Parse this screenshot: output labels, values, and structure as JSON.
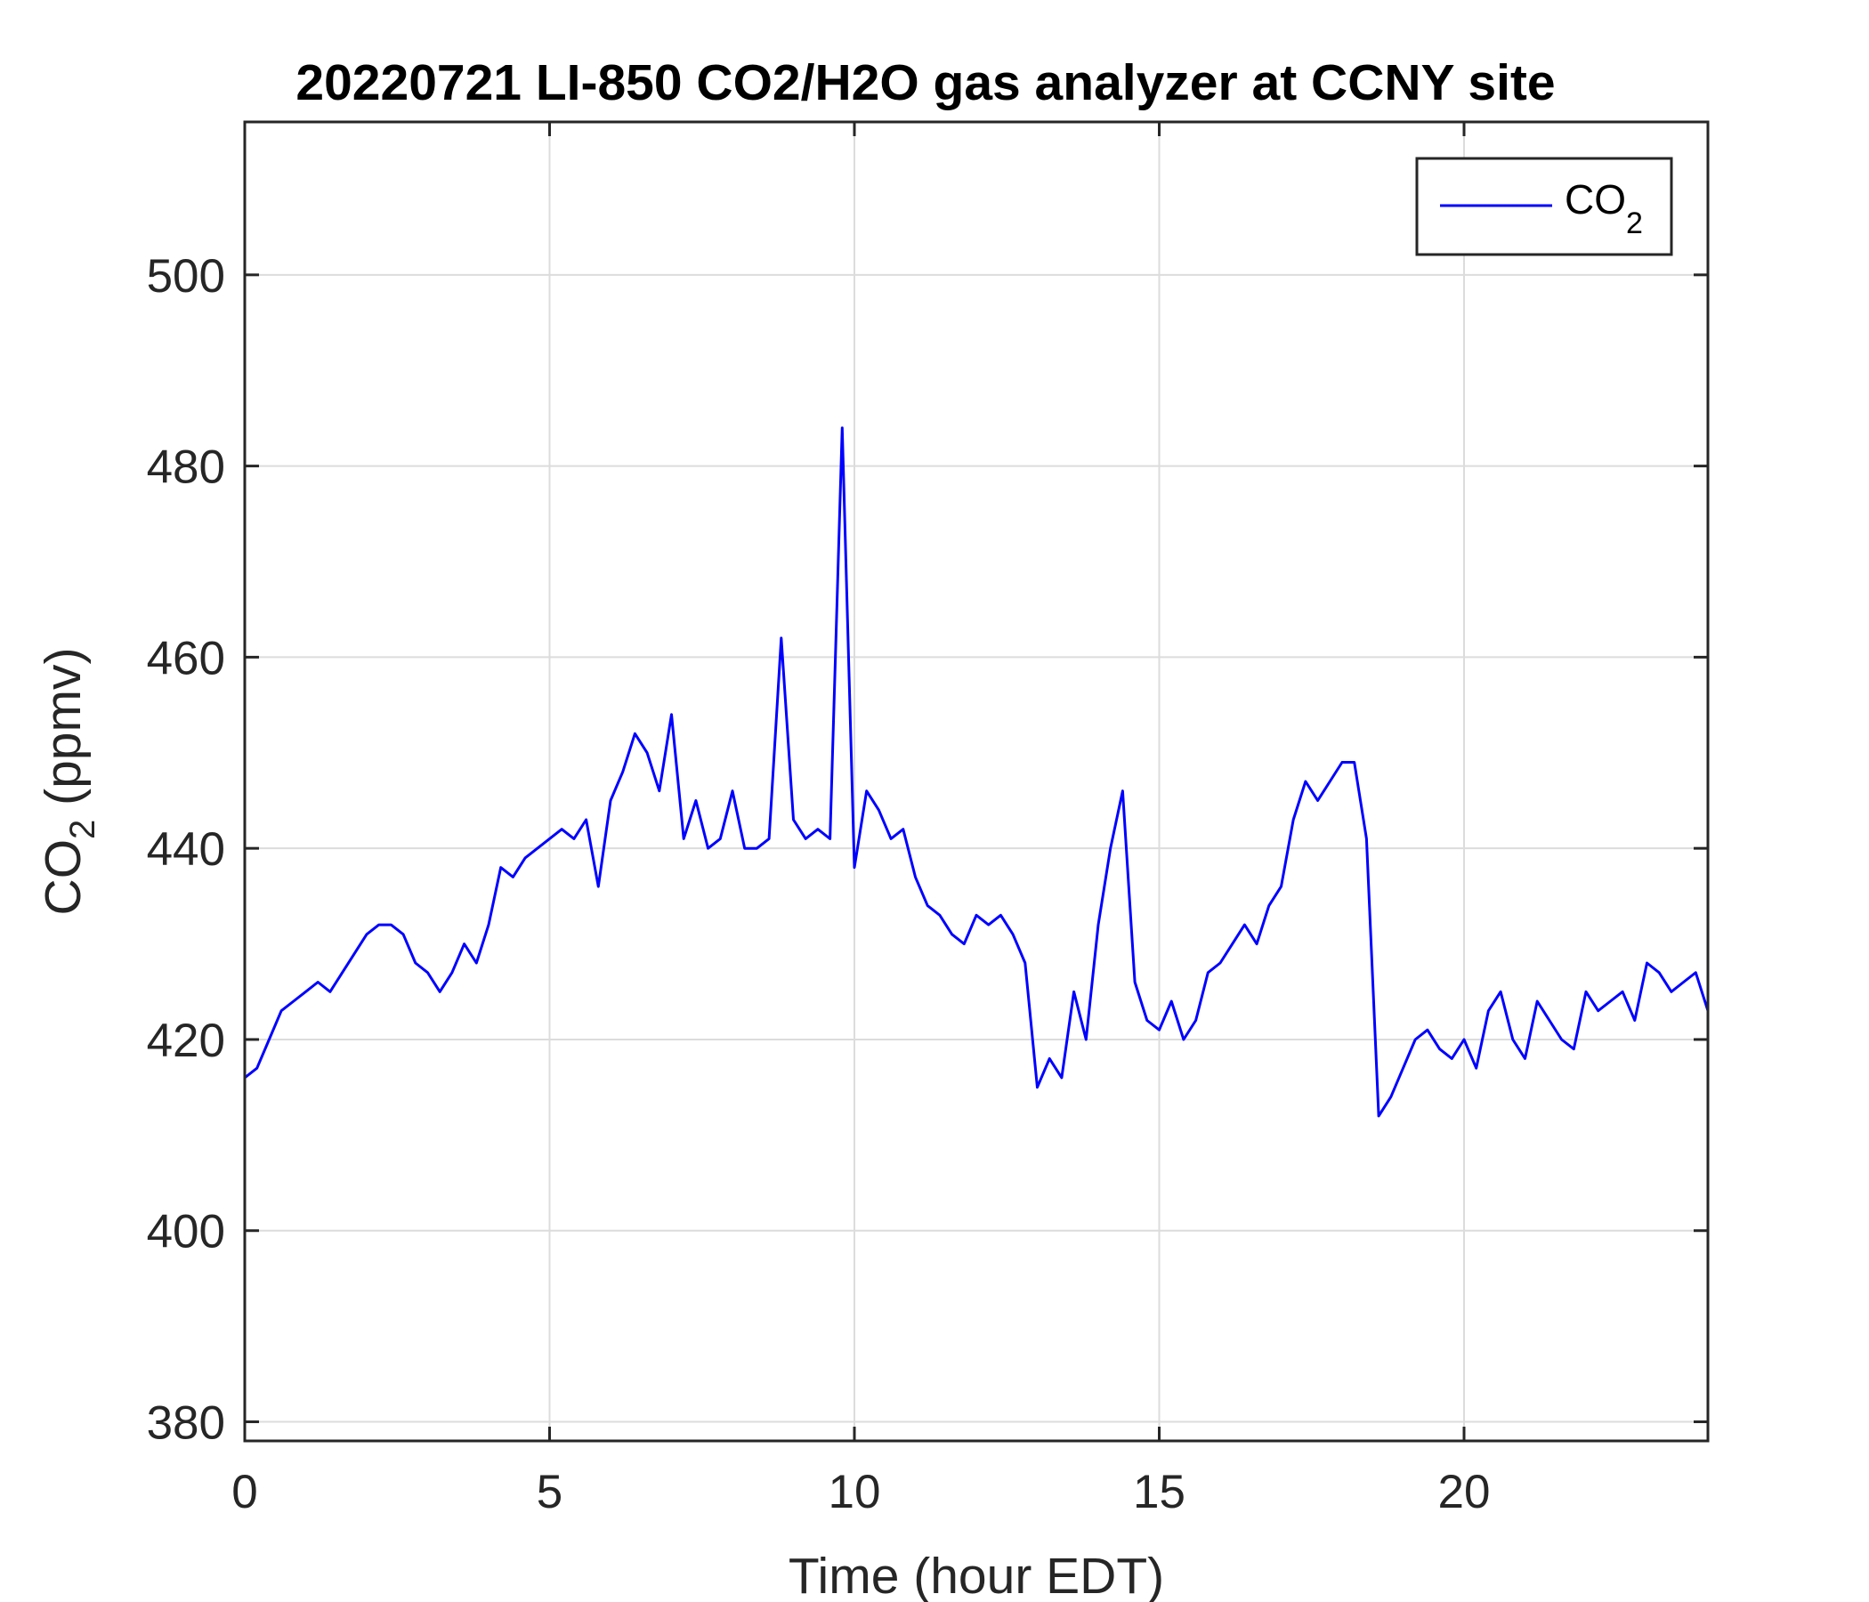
{
  "chart_data": {
    "type": "line",
    "title": "20220721 LI-850 CO2/H2O gas analyzer at CCNY site",
    "xlabel": "Time (hour EDT)",
    "ylabel": {
      "base": "CO",
      "sub": "2",
      "rest": " (ppmv)"
    },
    "xlim": [
      0,
      24
    ],
    "ylim": [
      378,
      516
    ],
    "xticks": [
      "0",
      "5",
      "10",
      "15",
      "20"
    ],
    "yticks": [
      "380",
      "400",
      "420",
      "440",
      "460",
      "480",
      "500"
    ],
    "grid": true,
    "legend": {
      "position": "top-right",
      "entries": [
        {
          "base": "CO",
          "sub": "2"
        }
      ]
    },
    "series": [
      {
        "name": "CO2",
        "color": "#0000ff",
        "x": [
          0,
          0.2,
          0.4,
          0.6,
          0.8,
          1.0,
          1.2,
          1.4,
          1.6,
          1.8,
          2.0,
          2.2,
          2.4,
          2.6,
          2.8,
          3.0,
          3.2,
          3.4,
          3.6,
          3.8,
          4.0,
          4.2,
          4.4,
          4.6,
          4.8,
          5.0,
          5.2,
          5.4,
          5.6,
          5.8,
          6.0,
          6.2,
          6.4,
          6.6,
          6.8,
          7.0,
          7.2,
          7.4,
          7.6,
          7.8,
          8.0,
          8.2,
          8.4,
          8.6,
          8.8,
          9.0,
          9.2,
          9.4,
          9.6,
          9.8,
          10.0,
          10.2,
          10.4,
          10.6,
          10.8,
          11.0,
          11.2,
          11.4,
          11.6,
          11.8,
          12.0,
          12.2,
          12.4,
          12.6,
          12.8,
          13.0,
          13.2,
          13.4,
          13.6,
          13.8,
          14.0,
          14.2,
          14.4,
          14.6,
          14.8,
          15.0,
          15.2,
          15.4,
          15.6,
          15.8,
          16.0,
          16.2,
          16.4,
          16.6,
          16.8,
          17.0,
          17.2,
          17.4,
          17.6,
          17.8,
          18.0,
          18.2,
          18.4,
          18.6,
          18.8,
          19.0,
          19.2,
          19.4,
          19.6,
          19.8,
          20.0,
          20.2,
          20.4,
          20.6,
          20.8,
          21.0,
          21.2,
          21.4,
          21.6,
          21.8,
          22.0,
          22.2,
          22.4,
          22.6,
          22.8,
          23.0,
          23.2,
          23.4,
          23.6,
          23.8,
          24.0
        ],
        "y": [
          416,
          417,
          420,
          423,
          424,
          425,
          426,
          425,
          427,
          429,
          431,
          432,
          432,
          431,
          428,
          427,
          425,
          427,
          430,
          428,
          432,
          438,
          437,
          439,
          440,
          441,
          442,
          441,
          443,
          436,
          445,
          448,
          452,
          450,
          446,
          454,
          441,
          445,
          440,
          441,
          446,
          440,
          440,
          441,
          462,
          443,
          441,
          442,
          441,
          484,
          438,
          446,
          444,
          441,
          442,
          437,
          434,
          433,
          431,
          430,
          433,
          432,
          433,
          431,
          428,
          415,
          418,
          416,
          425,
          420,
          432,
          440,
          446,
          426,
          422,
          421,
          424,
          420,
          422,
          427,
          428,
          430,
          432,
          430,
          434,
          436,
          443,
          447,
          445,
          447,
          449,
          449,
          441,
          412,
          414,
          417,
          420,
          421,
          419,
          418,
          420,
          417,
          423,
          425,
          420,
          418,
          424,
          422,
          420,
          419,
          425,
          423,
          424,
          425,
          422,
          428,
          427,
          425,
          426,
          427,
          423
        ]
      }
    ]
  }
}
